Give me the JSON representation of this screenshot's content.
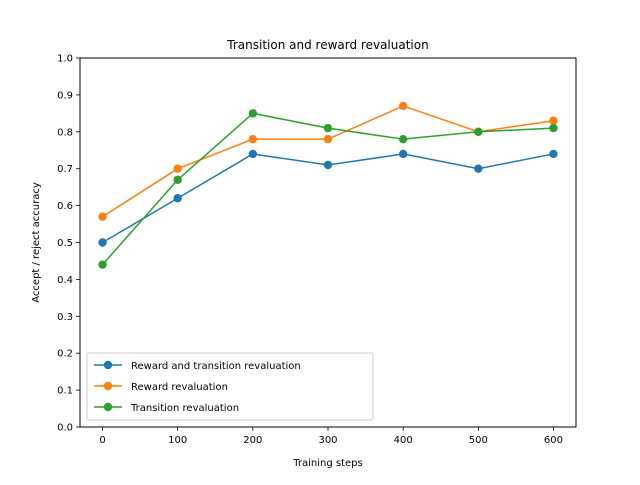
{
  "chart_data": {
    "type": "line",
    "title": "Transition and reward revaluation",
    "xlabel": "Training steps",
    "ylabel": "Accept / reject accuracy",
    "x": [
      0,
      100,
      200,
      300,
      400,
      500,
      600
    ],
    "xlim": [
      -30,
      630
    ],
    "ylim": [
      0.0,
      1.0
    ],
    "xticks": [
      0,
      100,
      200,
      300,
      400,
      500,
      600
    ],
    "yticks": [
      0.0,
      0.1,
      0.2,
      0.3,
      0.4,
      0.5,
      0.6,
      0.7,
      0.8,
      0.9,
      1.0
    ],
    "ytick_labels": [
      "0.0",
      "0.1",
      "0.2",
      "0.3",
      "0.4",
      "0.5",
      "0.6",
      "0.7",
      "0.8",
      "0.9",
      "1.0"
    ],
    "grid": false,
    "legend_position": "bottom-left",
    "series": [
      {
        "name": "Reward and transition revaluation",
        "color": "#1f77b4",
        "marker": "circle",
        "values": [
          0.5,
          0.62,
          0.74,
          0.71,
          0.74,
          0.7,
          0.74
        ]
      },
      {
        "name": "Reward revaluation",
        "color": "#ff7f0e",
        "marker": "circle",
        "values": [
          0.57,
          0.7,
          0.78,
          0.78,
          0.87,
          0.8,
          0.83
        ]
      },
      {
        "name": "Transition revaluation",
        "color": "#2ca02c",
        "marker": "circle",
        "values": [
          0.44,
          0.67,
          0.85,
          0.81,
          0.78,
          0.8,
          0.81
        ]
      }
    ]
  }
}
